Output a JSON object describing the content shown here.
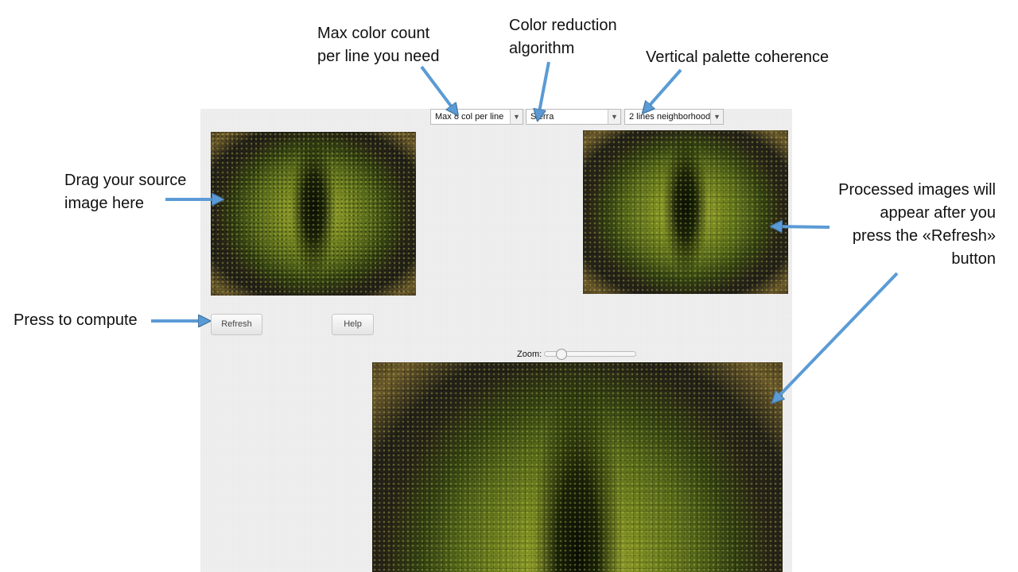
{
  "annotations": {
    "max_color": [
      "Max color count",
      "per line you need"
    ],
    "color_reduction": [
      "Color reduction",
      "algorithm"
    ],
    "vertical_palette": "Vertical palette coherence",
    "drag_source": [
      "Drag your source",
      "image here"
    ],
    "processed": [
      "Processed images will",
      "appear after you",
      "press the «Refresh»",
      "button"
    ],
    "press_compute": "Press to compute"
  },
  "controls": {
    "max_colors": "Max 8 col per line",
    "algorithm": "Sierra",
    "neighborhood": "2 lines neighborhood",
    "refresh_label": "Refresh",
    "help_label": "Help",
    "zoom_label": "Zoom:",
    "zoom_level": 0.15
  },
  "icons": {
    "dropdown": "chevron-down-icon",
    "annotation_arrows": "arrow-icon"
  },
  "colors": {
    "arrow": "#5b9bd5",
    "arrow_outline": "#41719c",
    "panel": "#efefef"
  }
}
